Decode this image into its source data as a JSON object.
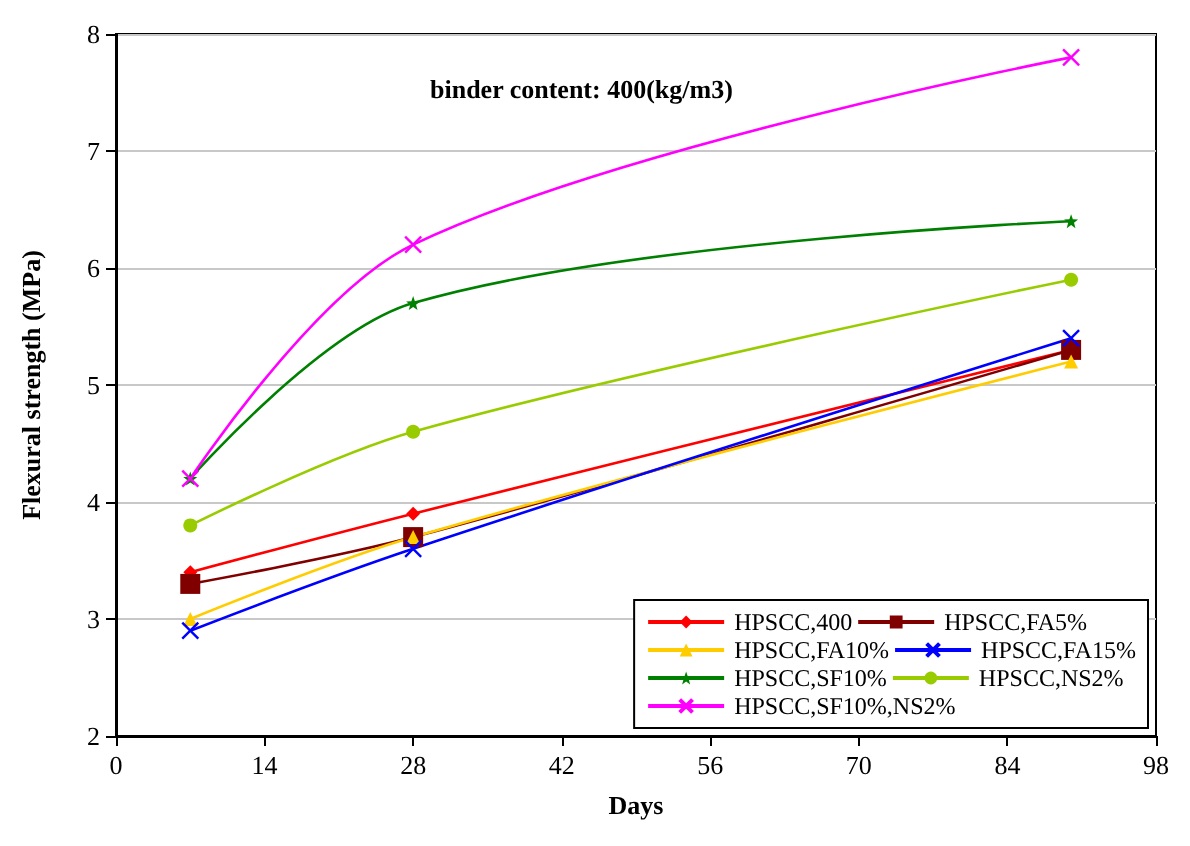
{
  "chart_data": {
    "type": "line",
    "xlabel": "Days",
    "ylabel": "Flexural strength (MPa)",
    "annotations": [
      "binder content: 400(kg/m3)"
    ],
    "x": [
      7,
      28,
      90
    ],
    "xlim": [
      0,
      98
    ],
    "xticks": [
      0,
      14,
      28,
      42,
      56,
      70,
      84,
      98
    ],
    "ylim": [
      2,
      8
    ],
    "yticks": [
      2,
      3,
      4,
      5,
      6,
      7,
      8
    ],
    "grid": "y",
    "legend": "bottom right",
    "line_style": "solid",
    "series": [
      {
        "name": "HPSCC,400",
        "color": "#ff0000",
        "marker": "diamond",
        "values": [
          3.4,
          3.9,
          5.3
        ]
      },
      {
        "name": "HPSCC,FA5%",
        "color": "#800000",
        "marker": "square",
        "values": [
          3.3,
          3.7,
          5.3
        ]
      },
      {
        "name": "HPSCC,FA10%",
        "color": "#ffcc00",
        "marker": "triangle",
        "values": [
          3.0,
          3.7,
          5.2
        ]
      },
      {
        "name": "HPSCC,FA15%",
        "color": "#0000ff",
        "marker": "cross",
        "values": [
          2.9,
          3.6,
          5.4
        ]
      },
      {
        "name": "HPSCC,SF10%",
        "color": "#008000",
        "marker": "star",
        "values": [
          4.2,
          5.7,
          6.4
        ]
      },
      {
        "name": "HPSCC,NS2%",
        "color": "#99cc00",
        "marker": "circle",
        "values": [
          3.8,
          4.6,
          5.9
        ]
      },
      {
        "name": "HPSCC,SF10%,NS2%",
        "color": "#ff00ff",
        "marker": "cross",
        "values": [
          4.2,
          6.2,
          7.8
        ]
      }
    ]
  }
}
